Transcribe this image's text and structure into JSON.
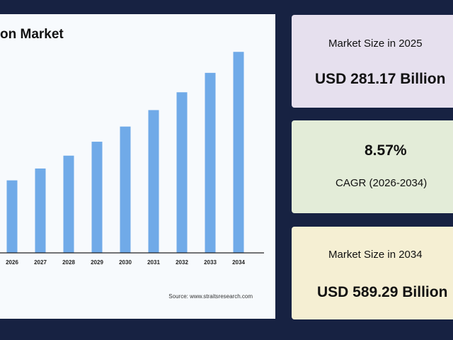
{
  "chart_data": {
    "type": "bar",
    "title": "on Market",
    "categories": [
      "2026",
      "2027",
      "2028",
      "2029",
      "2030",
      "2031",
      "2032",
      "2033",
      "2034"
    ],
    "values": [
      305.3,
      331.5,
      359.9,
      390.7,
      424.2,
      460.6,
      500.0,
      542.9,
      589.29
    ],
    "ylim": [
      145,
      610
    ],
    "bar_color": "#70aae8",
    "source": "Source: www.straitsresearch.com"
  },
  "cards": {
    "size_2025_label": "Market Size in 2025",
    "size_2025_value": "USD 281.17 Billion",
    "cagr_value": "8.57%",
    "cagr_label": "CAGR (2026-2034)",
    "size_2034_label": "Market Size in 2034",
    "size_2034_value": "USD 589.29 Billion"
  },
  "colors": {
    "background": "#172242",
    "card_2025": "#e6e0ee",
    "card_cagr": "#e3ecd8",
    "card_2034": "#f5efd3"
  }
}
